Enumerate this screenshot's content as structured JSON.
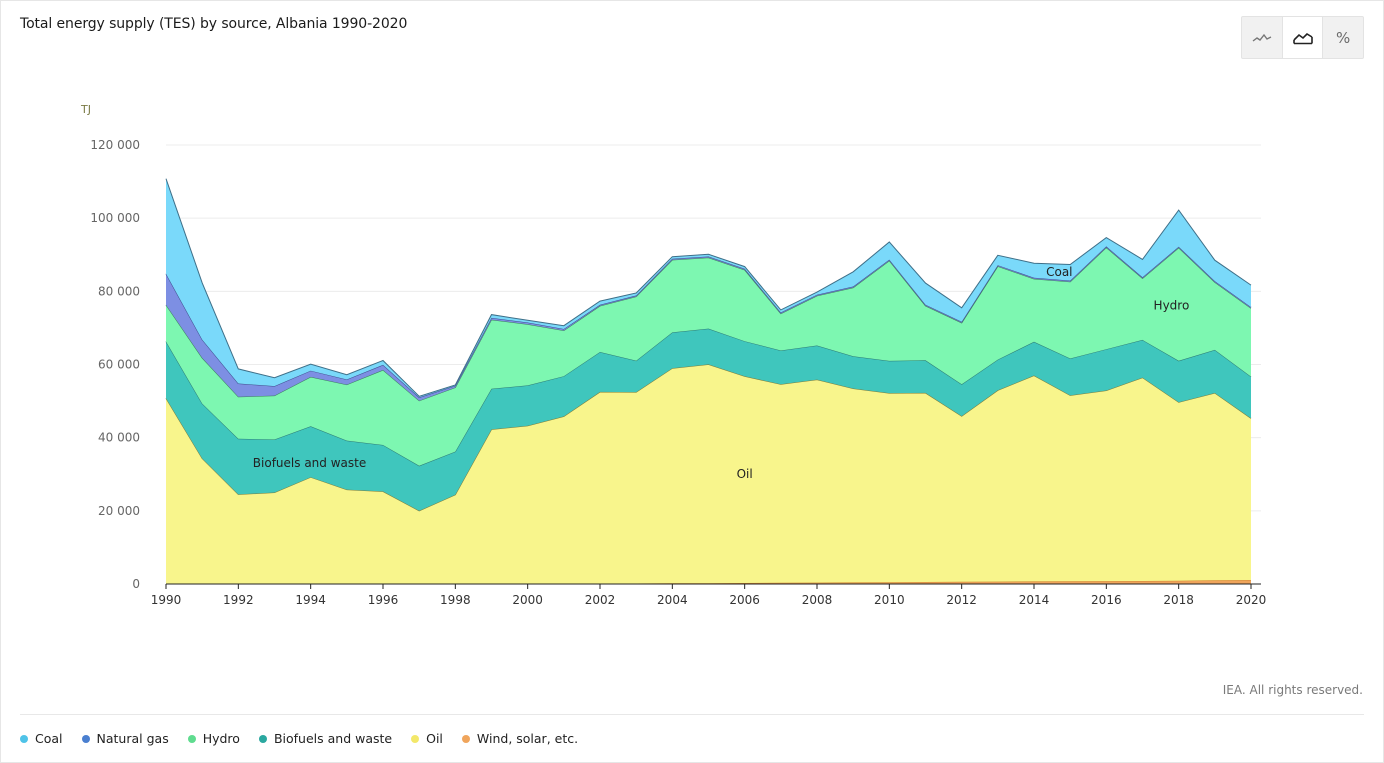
{
  "title": "Total energy supply (TES) by source, Albania 1990-2020",
  "toggle": [
    {
      "name": "line-chart-icon",
      "glyph": "⌇",
      "active": false
    },
    {
      "name": "area-chart-icon",
      "glyph": "⛰",
      "active": true
    },
    {
      "name": "percent-icon",
      "glyph": "%",
      "active": false
    }
  ],
  "credit": "IEA. All rights reserved.",
  "legend": [
    {
      "label": "Coal",
      "color": "#4fc3e8"
    },
    {
      "label": "Natural gas",
      "color": "#4a7fd0"
    },
    {
      "label": "Hydro",
      "color": "#5fdc8f"
    },
    {
      "label": "Biofuels and waste",
      "color": "#2aa8a0"
    },
    {
      "label": "Oil",
      "color": "#f3e86a"
    },
    {
      "label": "Wind, solar, etc.",
      "color": "#f0a55c"
    }
  ],
  "chart_data": {
    "type": "area",
    "stacked": true,
    "unit_label": "TJ",
    "x": [
      1990,
      1991,
      1992,
      1993,
      1994,
      1995,
      1996,
      1997,
      1998,
      1999,
      2000,
      2001,
      2002,
      2003,
      2004,
      2005,
      2006,
      2007,
      2008,
      2009,
      2010,
      2011,
      2012,
      2013,
      2014,
      2015,
      2016,
      2017,
      2018,
      2019,
      2020
    ],
    "xticks": [
      "1990",
      "1992",
      "1994",
      "1996",
      "1998",
      "2000",
      "2002",
      "2004",
      "2006",
      "2008",
      "2010",
      "2012",
      "2014",
      "2016",
      "2018",
      "2020"
    ],
    "yticks": [
      "0",
      "20 000",
      "40 000",
      "60 000",
      "80 000",
      "100 000",
      "120 000"
    ],
    "ylim": [
      0,
      120000
    ],
    "grid": true,
    "series": [
      {
        "name": "Wind, solar, etc.",
        "fill": "#f0a55c",
        "line": "#d08530",
        "values": [
          0,
          0,
          0,
          0,
          0,
          0,
          0,
          0,
          0,
          50,
          80,
          100,
          120,
          150,
          180,
          220,
          270,
          320,
          380,
          430,
          480,
          540,
          600,
          650,
          700,
          740,
          780,
          830,
          900,
          1000,
          1100
        ]
      },
      {
        "name": "Oil",
        "fill": "#f8f58c",
        "line": "#7c7a3a",
        "values": [
          50800,
          34300,
          24500,
          25000,
          29200,
          25800,
          25300,
          20000,
          24400,
          42200,
          43200,
          45700,
          52400,
          52300,
          58800,
          59800,
          56500,
          54300,
          55500,
          53000,
          51700,
          51700,
          45300,
          52300,
          56300,
          50800,
          52100,
          55600,
          48800,
          51200,
          44200
        ]
      },
      {
        "name": "Biofuels and waste",
        "fill": "#3fc6bd",
        "line": "#2d7a74",
        "values": [
          15500,
          15000,
          15200,
          14500,
          13900,
          13400,
          12700,
          12300,
          11800,
          11100,
          11000,
          11000,
          10900,
          8600,
          9800,
          9800,
          9600,
          9200,
          9300,
          8800,
          8800,
          8900,
          8700,
          8400,
          9200,
          10100,
          11300,
          10300,
          11300,
          11800,
          11400
        ]
      },
      {
        "name": "Hydro",
        "fill": "#7df7b1",
        "line": "#3b7d5a",
        "values": [
          10000,
          12500,
          11500,
          12000,
          13500,
          15300,
          20500,
          17800,
          17500,
          18900,
          16700,
          12500,
          12600,
          17500,
          19800,
          19400,
          19500,
          10100,
          13600,
          18800,
          27400,
          14900,
          16800,
          25500,
          17200,
          21000,
          27800,
          16800,
          30900,
          18500,
          18700
        ]
      },
      {
        "name": "Natural gas",
        "fill": "#7d8fe3",
        "line": "#3e4a8a",
        "values": [
          8500,
          5000,
          3600,
          2600,
          1700,
          1400,
          1400,
          900,
          500,
          500,
          500,
          400,
          300,
          300,
          300,
          300,
          300,
          300,
          300,
          300,
          300,
          300,
          300,
          300,
          300,
          300,
          300,
          300,
          300,
          300,
          300
        ]
      },
      {
        "name": "Coal",
        "fill": "#7ad9fa",
        "line": "#3e6f88",
        "values": [
          26000,
          15500,
          4000,
          2300,
          1800,
          1300,
          1200,
          300,
          200,
          900,
          600,
          900,
          1000,
          700,
          600,
          600,
          600,
          700,
          700,
          4000,
          4800,
          5900,
          3800,
          2700,
          4000,
          4400,
          2400,
          4900,
          10000,
          5700,
          6000
        ]
      }
    ],
    "annotations": [
      {
        "text": "Biofuels and waste",
        "x": 1992.4,
        "y": 32000
      },
      {
        "text": "Oil",
        "x": 2006.0,
        "y": 29000
      },
      {
        "text": "Coal",
        "x": 2014.7,
        "y": 84200
      },
      {
        "text": "Hydro",
        "x": 2017.8,
        "y": 75000
      }
    ]
  }
}
